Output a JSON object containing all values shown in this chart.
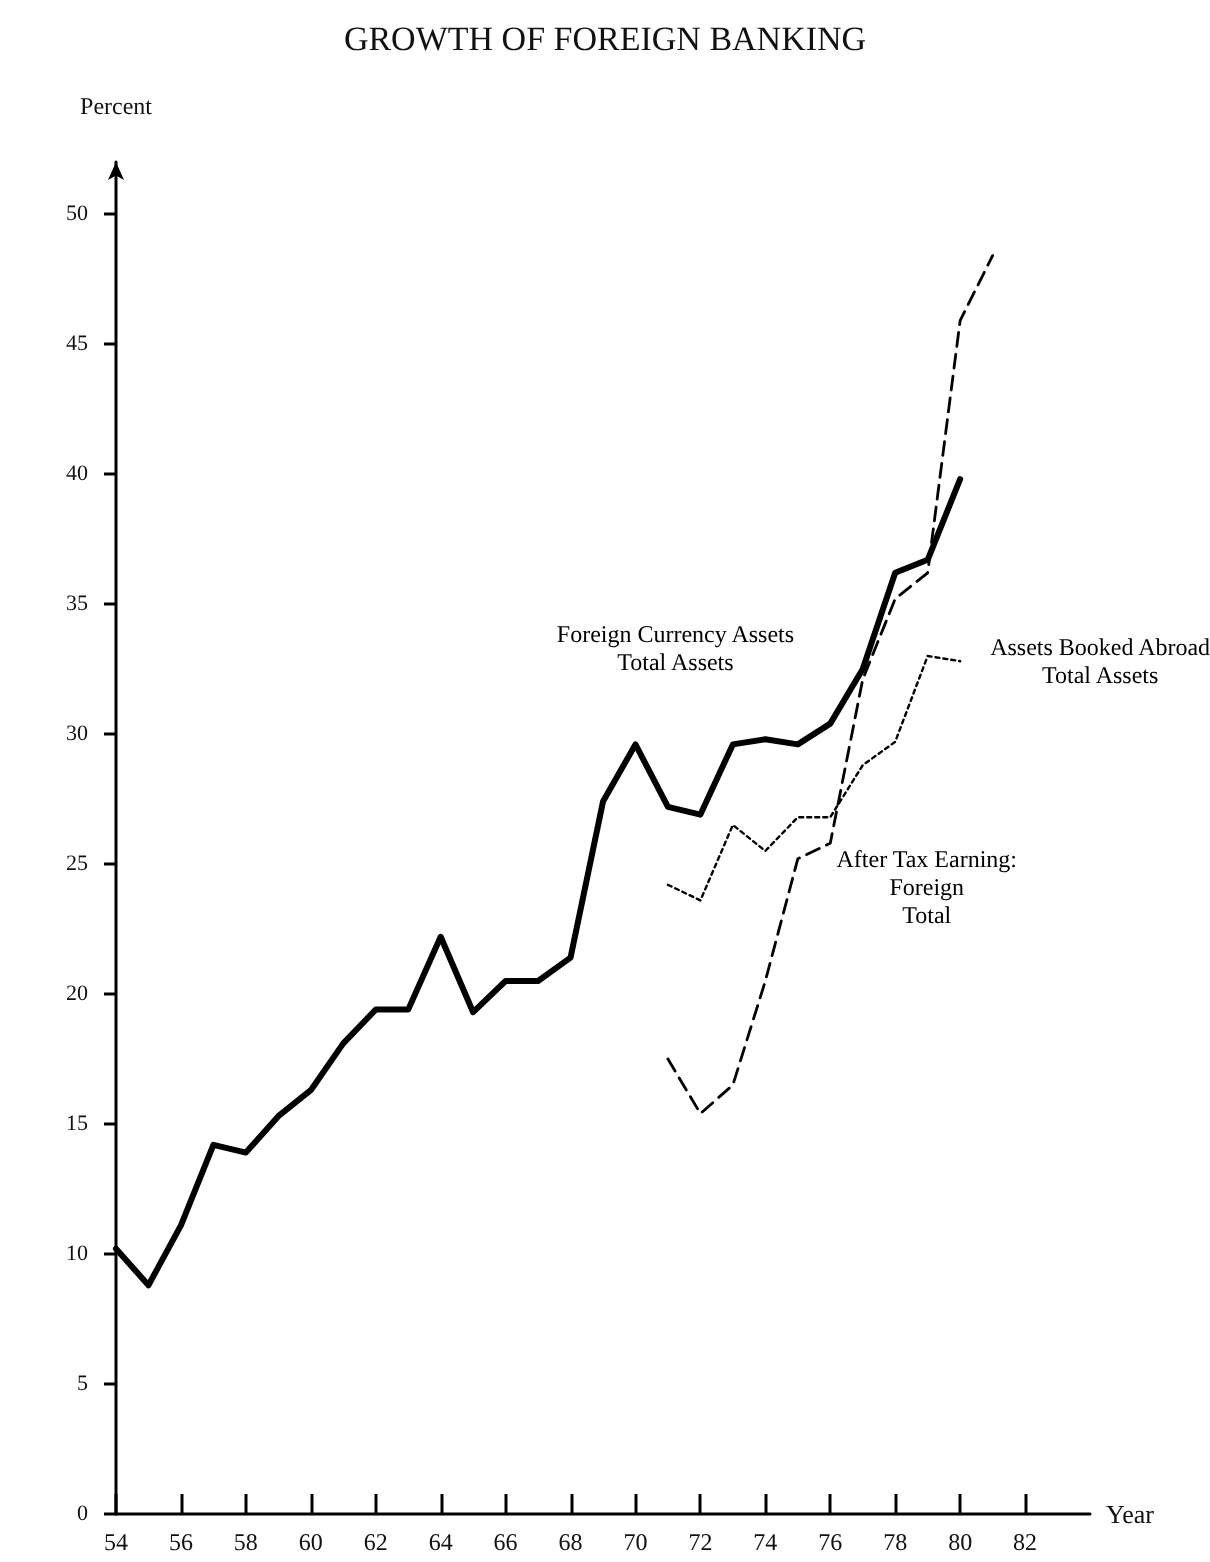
{
  "chart_data": {
    "type": "line",
    "title": "GROWTH OF FOREIGN BANKING",
    "xlabel": "Year",
    "ylabel": "Percent",
    "x": [
      54,
      55,
      56,
      57,
      58,
      59,
      60,
      61,
      62,
      63,
      64,
      65,
      66,
      67,
      68,
      69,
      70,
      71,
      72,
      73,
      74,
      75,
      76,
      77,
      78,
      79,
      80
    ],
    "series": [
      {
        "name": "Foreign Currency Assets\nTotal Assets",
        "color": "#000000",
        "line_style": "solid",
        "values": [
          10.2,
          8.8,
          11.1,
          14.2,
          13.9,
          15.3,
          16.3,
          18.1,
          19.4,
          19.4,
          22.2,
          19.3,
          20.5,
          20.5,
          21.4,
          27.4,
          29.6,
          27.2,
          26.9,
          29.6,
          29.8,
          29.6,
          30.4,
          32.5,
          36.2,
          36.7,
          39.8
        ]
      },
      {
        "name": "Assets Booked Abroad\nTotal Assets",
        "color": "#000000",
        "line_style": "dotted",
        "x": [
          71,
          72,
          73,
          74,
          75,
          76,
          77,
          78,
          79,
          80
        ],
        "values": [
          24.2,
          23.6,
          26.5,
          25.5,
          26.8,
          26.8,
          28.8,
          29.7,
          33.0,
          32.8
        ]
      },
      {
        "name": "After Tax Earning:\nForeign\nTotal",
        "color": "#000000",
        "line_style": "dashed",
        "x": [
          71,
          72,
          73,
          74,
          75,
          76,
          77,
          78,
          79,
          80,
          81
        ],
        "values": [
          17.5,
          15.4,
          16.5,
          20.5,
          25.2,
          25.8,
          32.1,
          35.2,
          36.2,
          45.9,
          48.4
        ]
      }
    ],
    "xlim": [
      54,
      84
    ],
    "xticks": [
      54,
      56,
      58,
      60,
      62,
      64,
      66,
      68,
      70,
      72,
      74,
      76,
      78,
      80,
      82
    ],
    "ylim": [
      0,
      52
    ],
    "yticks": [
      0,
      5,
      10,
      15,
      20,
      25,
      30,
      35,
      40,
      45,
      50
    ],
    "grid": false,
    "marker": "none"
  }
}
